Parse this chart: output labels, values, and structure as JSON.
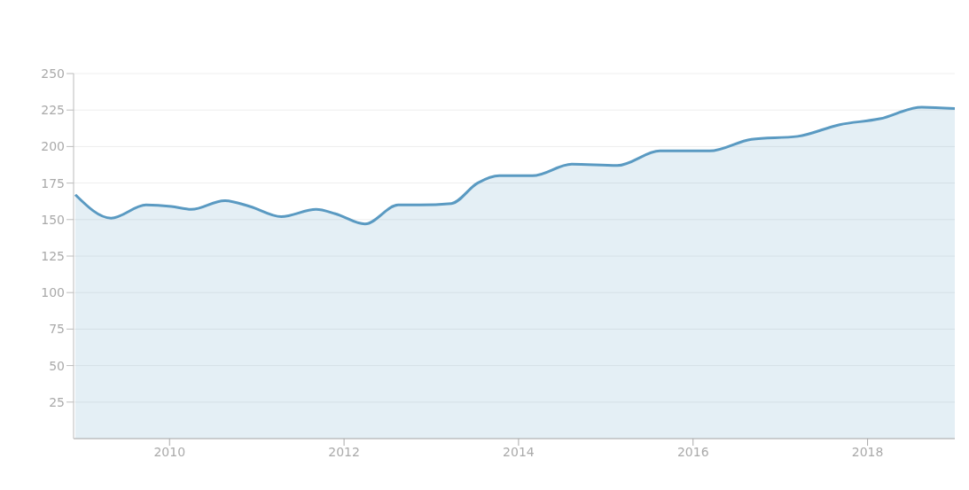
{
  "chart_data": {
    "type": "area",
    "x": [
      2008.92,
      2009.33,
      2009.73,
      2010.02,
      2010.25,
      2010.63,
      2010.92,
      2011.28,
      2011.68,
      2011.9,
      2012.24,
      2012.62,
      2012.87,
      2013.23,
      2013.53,
      2013.78,
      2014.16,
      2014.61,
      2015.13,
      2015.62,
      2016.19,
      2016.67,
      2017.2,
      2017.68,
      2018.14,
      2018.62,
      2019
    ],
    "series": [
      {
        "color": "#5a9ac2",
        "values": [
          167,
          151,
          160,
          159,
          157,
          163,
          159,
          152,
          157,
          154,
          147,
          160,
          160,
          161,
          175,
          180,
          180,
          188,
          187,
          197,
          197,
          205,
          207,
          215,
          219,
          227,
          226
        ]
      }
    ],
    "xlim": [
      2008.9,
      2019
    ],
    "xticks": [
      2010,
      2012,
      2014,
      2016,
      2018
    ],
    "ylim": [
      0,
      250
    ],
    "yticks": [
      25,
      50,
      75,
      100,
      125,
      150,
      175,
      200,
      225,
      250
    ],
    "grid": "y",
    "legend": false
  }
}
